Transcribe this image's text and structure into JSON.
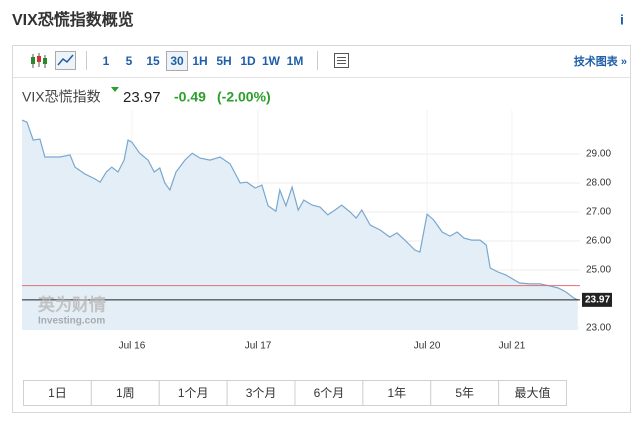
{
  "header": {
    "title": "VIX恐慌指数概览",
    "info": "i"
  },
  "toolbar": {
    "intervals": [
      "1",
      "5",
      "15",
      "30",
      "1H",
      "5H",
      "1D",
      "1W",
      "1M"
    ],
    "selected": "30",
    "tech_chart": "技术图表 »"
  },
  "quote": {
    "name": "VIX恐慌指数",
    "price": "23.97",
    "change": "-0.49",
    "change_pct": "(-2.00%)"
  },
  "chart_data": {
    "type": "area",
    "color": "#7aa7cf",
    "fill": "#e4eef6",
    "x": [
      0,
      0.9,
      2.0,
      3.2,
      4.1,
      6.8,
      8.6,
      9.5,
      11.3,
      13.1,
      14.0,
      15.1,
      16.1,
      17.2,
      18.3,
      19.0,
      19.7,
      21.1,
      22.6,
      23.7,
      24.7,
      25.6,
      26.5,
      27.6,
      29.2,
      30.5,
      31.9,
      33.7,
      35.5,
      37.3,
      39.1,
      40.3,
      41.8,
      43.0,
      44.1,
      45.5,
      46.2,
      47.3,
      48.4,
      49.5,
      50.5,
      52.0,
      53.4,
      54.8,
      56.1,
      57.3,
      58.8,
      59.9,
      60.9,
      62.4,
      64.2,
      65.9,
      67.2,
      68.6,
      70.4,
      71.3,
      72.6,
      73.8,
      75.3,
      76.7,
      78.0,
      79.2,
      80.6,
      82.1,
      83.2,
      83.9,
      85.3,
      86.7,
      88.2,
      89.2,
      91.0,
      92.8,
      94.6,
      96.1,
      97.5,
      98.9,
      99.6
    ],
    "values": [
      30.17,
      30.1,
      29.48,
      29.52,
      28.9,
      28.9,
      28.97,
      28.55,
      28.31,
      28.14,
      28.03,
      28.38,
      28.55,
      28.38,
      28.79,
      29.48,
      29.41,
      29.03,
      28.79,
      28.38,
      28.52,
      28.0,
      27.76,
      28.38,
      28.79,
      29.03,
      28.86,
      28.79,
      28.9,
      28.66,
      28.0,
      28.03,
      27.83,
      27.93,
      27.21,
      27.03,
      27.76,
      27.21,
      27.86,
      27.07,
      27.41,
      27.24,
      27.17,
      26.9,
      27.07,
      27.24,
      27.0,
      26.79,
      27.07,
      26.55,
      26.38,
      26.14,
      26.28,
      26.03,
      25.69,
      25.62,
      26.93,
      26.72,
      26.31,
      26.17,
      26.31,
      26.1,
      26.03,
      26.03,
      25.86,
      25.07,
      24.93,
      24.83,
      24.66,
      24.55,
      24.52,
      24.52,
      24.45,
      24.38,
      24.24,
      24.03,
      23.97
    ],
    "xlim": [
      0,
      100
    ],
    "ylim": [
      22.93,
      30.52
    ],
    "xticks": [
      {
        "value": 19.7,
        "label": "Jul 16"
      },
      {
        "value": 42.3,
        "label": "Jul 17"
      },
      {
        "value": 72.6,
        "label": "Jul 20"
      },
      {
        "value": 87.8,
        "label": "Jul 21"
      }
    ],
    "yticks": [
      {
        "value": 23,
        "label": "23.00"
      },
      {
        "value": 25,
        "label": "25.00"
      },
      {
        "value": 26,
        "label": "26.00"
      },
      {
        "value": 27,
        "label": "27.00"
      },
      {
        "value": 28,
        "label": "28.00"
      },
      {
        "value": 29,
        "label": "29.00"
      }
    ],
    "reference_line": 24.46,
    "reference_color": "#e07070",
    "grid": true,
    "watermark": {
      "brand": "英为财情",
      "site": "Investing.com"
    }
  },
  "ranges": [
    "1日",
    "1周",
    "1个月",
    "3个月",
    "6个月",
    "1年",
    "5年",
    "最大值"
  ]
}
